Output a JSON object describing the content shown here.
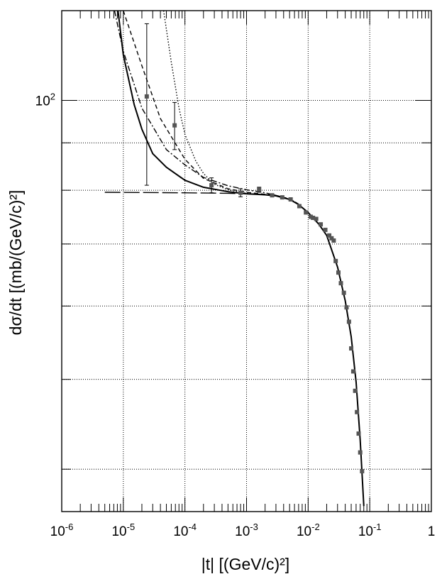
{
  "chart_data": {
    "type": "scatter",
    "title": "",
    "xlabel": "|t| [(GeV/c)²]",
    "ylabel": "dσ/dt [(mb/(GeV/c)²]",
    "xscale": "log",
    "yscale": "log",
    "xlim": [
      1e-06,
      1
    ],
    "ylim": [
      36,
      125
    ],
    "grid": true,
    "legend": "none",
    "x_tick_labels": [
      {
        "base": "10",
        "exp": "-6",
        "value": 1e-06
      },
      {
        "base": "10",
        "exp": "-5",
        "value": 1e-05
      },
      {
        "base": "10",
        "exp": "-4",
        "value": 0.0001
      },
      {
        "base": "10",
        "exp": "-3",
        "value": 0.001
      },
      {
        "base": "10",
        "exp": "-2",
        "value": 0.01
      },
      {
        "base": "10",
        "exp": "-1",
        "value": 0.1
      },
      {
        "base": "1",
        "exp": "",
        "value": 1
      }
    ],
    "y_tick_labels": [
      {
        "base": "10",
        "exp": "2",
        "value": 100
      }
    ],
    "y_grid_values": [
      40,
      50,
      60,
      70,
      80,
      90,
      100
    ],
    "series": [
      {
        "style": "markers-with-error-bars",
        "marker_color": "#555555",
        "points": [
          {
            "x": 2.4e-05,
            "y": 101.0,
            "yerr": 20.0
          },
          {
            "x": 6.8e-05,
            "y": 94.0,
            "yerr": 5.5
          },
          {
            "x": 0.00027,
            "y": 81.0,
            "yerr": 1.5
          },
          {
            "x": 0.0008,
            "y": 79.5,
            "yerr": 0.8
          },
          {
            "x": 0.0016,
            "y": 80.1,
            "yerr": 0.5
          },
          {
            "x": 0.0026,
            "y": 79.0
          },
          {
            "x": 0.0038,
            "y": 78.6
          },
          {
            "x": 0.0052,
            "y": 78.2
          },
          {
            "x": 0.0072,
            "y": 76.9
          },
          {
            "x": 0.0092,
            "y": 75.7
          },
          {
            "x": 0.011,
            "y": 74.9
          },
          {
            "x": 0.012,
            "y": 74.7
          },
          {
            "x": 0.0135,
            "y": 74.5
          },
          {
            "x": 0.016,
            "y": 73.5
          },
          {
            "x": 0.019,
            "y": 72.5
          },
          {
            "x": 0.022,
            "y": 71.5
          },
          {
            "x": 0.024,
            "y": 71.0
          },
          {
            "x": 0.026,
            "y": 70.6
          },
          {
            "x": 0.028,
            "y": 67.1
          },
          {
            "x": 0.031,
            "y": 65.2
          },
          {
            "x": 0.034,
            "y": 63.5
          },
          {
            "x": 0.038,
            "y": 62.0
          },
          {
            "x": 0.042,
            "y": 59.8
          },
          {
            "x": 0.046,
            "y": 57.7
          },
          {
            "x": 0.05,
            "y": 54.0
          },
          {
            "x": 0.054,
            "y": 51.0
          },
          {
            "x": 0.058,
            "y": 48.6
          },
          {
            "x": 0.062,
            "y": 46.1
          },
          {
            "x": 0.066,
            "y": 43.7
          },
          {
            "x": 0.07,
            "y": 41.7
          },
          {
            "x": 0.075,
            "y": 39.8
          }
        ]
      },
      {
        "style": "solid",
        "points": [
          [
            8.2e-06,
            125
          ],
          [
            1e-05,
            112
          ],
          [
            1.5e-05,
            99
          ],
          [
            2e-05,
            93.1
          ],
          [
            3e-05,
            87.6
          ],
          [
            5e-05,
            84.7
          ],
          [
            0.0001,
            82.0
          ],
          [
            0.0002,
            80.6
          ],
          [
            0.0005,
            79.7
          ],
          [
            0.001,
            79.3
          ],
          [
            0.002,
            79.1
          ],
          [
            0.003,
            78.9
          ],
          [
            0.005,
            78.2
          ],
          [
            0.007,
            77.2
          ],
          [
            0.01,
            75.7
          ],
          [
            0.015,
            73.5
          ],
          [
            0.02,
            71.5
          ],
          [
            0.03,
            66.1
          ],
          [
            0.04,
            60.8
          ],
          [
            0.05,
            55.6
          ],
          [
            0.06,
            49.7
          ],
          [
            0.07,
            43.0
          ],
          [
            0.08,
            36.5
          ]
        ]
      },
      {
        "style": "dashed",
        "points": [
          [
            1e-05,
            125
          ],
          [
            2e-05,
            109
          ],
          [
            4e-05,
            95.6
          ],
          [
            0.0001,
            86.4
          ],
          [
            0.0002,
            82.4
          ],
          [
            0.0005,
            80.3
          ],
          [
            0.001,
            79.6
          ],
          [
            0.002,
            79.2
          ],
          [
            0.003,
            79.0
          ],
          [
            0.005,
            78.3
          ],
          [
            0.007,
            77.3
          ]
        ]
      },
      {
        "style": "dash-dot",
        "points": [
          [
            7.2e-06,
            125
          ],
          [
            1e-05,
            113
          ],
          [
            2e-05,
            98.1
          ],
          [
            5e-05,
            88.5
          ],
          [
            0.0001,
            85.2
          ],
          [
            0.0002,
            82.6
          ],
          [
            0.0005,
            80.9
          ],
          [
            0.001,
            80.1
          ],
          [
            0.002,
            79.5
          ],
          [
            0.003,
            79.0
          ],
          [
            0.005,
            78.3
          ],
          [
            0.007,
            77.3
          ]
        ]
      },
      {
        "style": "dotted",
        "points": [
          [
            4.5e-05,
            125
          ],
          [
            6e-05,
            110
          ],
          [
            8e-05,
            98.1
          ],
          [
            0.0001,
            91.9
          ],
          [
            0.00015,
            86.0
          ],
          [
            0.0002,
            83.4
          ],
          [
            0.0003,
            81.2
          ],
          [
            0.0005,
            80.1
          ],
          [
            0.001,
            79.4
          ],
          [
            0.002,
            79.1
          ],
          [
            0.003,
            79.0
          ]
        ]
      },
      {
        "style": "long-dash",
        "points": [
          [
            5e-06,
            79.6
          ],
          [
            0.0001,
            79.5
          ],
          [
            0.0005,
            79.4
          ],
          [
            0.001,
            79.3
          ],
          [
            0.002,
            79.1
          ],
          [
            0.003,
            79.0
          ]
        ]
      }
    ]
  }
}
